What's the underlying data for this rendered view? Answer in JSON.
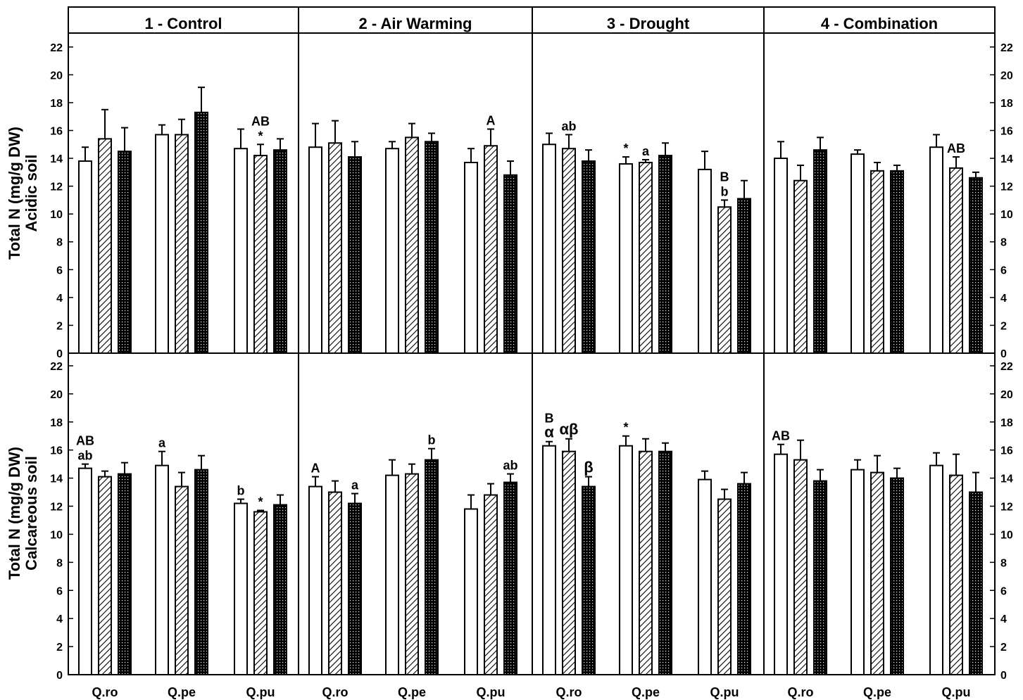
{
  "chart_data": {
    "type": "bar",
    "panels": [
      "1 - Control",
      "2 - Air Warming",
      "3 - Drought",
      "4 - Combination"
    ],
    "rows": [
      {
        "ylabel": [
          "Total N (mg/g DW)",
          "Acidic soil"
        ]
      },
      {
        "ylabel": [
          "Total N (mg/g DW)",
          "Calcareous soil"
        ]
      }
    ],
    "categories": [
      "Q.ro",
      "Q.pe",
      "Q.pu"
    ],
    "series_patterns": [
      "open",
      "hatched",
      "dotted"
    ],
    "ylim": [
      0,
      23
    ],
    "yticks": [
      "0",
      "2",
      "4",
      "6",
      "8",
      "10",
      "12",
      "14",
      "16",
      "18",
      "20",
      "22"
    ],
    "data": [
      [
        [
          {
            "v": 13.8,
            "e": 1.0
          },
          {
            "v": 15.4,
            "e": 2.1
          },
          {
            "v": 14.5,
            "e": 1.7
          },
          {
            "v": 15.7,
            "e": 0.7
          },
          {
            "v": 15.7,
            "e": 1.1
          },
          {
            "v": 17.3,
            "e": 1.8
          },
          {
            "v": 14.7,
            "e": 1.4,
            "lbl": ""
          },
          {
            "v": 14.2,
            "e": 0.8,
            "lbl": "AB\n*"
          },
          {
            "v": 14.6,
            "e": 0.8
          }
        ],
        [
          {
            "v": 14.8,
            "e": 1.7
          },
          {
            "v": 15.1,
            "e": 1.6
          },
          {
            "v": 14.1,
            "e": 1.1
          },
          {
            "v": 14.7,
            "e": 0.5
          },
          {
            "v": 15.5,
            "e": 1.0
          },
          {
            "v": 15.2,
            "e": 0.6
          },
          {
            "v": 13.7,
            "e": 1.0
          },
          {
            "v": 14.9,
            "e": 1.2,
            "lbl": "A"
          },
          {
            "v": 12.8,
            "e": 1.0
          }
        ],
        [
          {
            "v": 15.0,
            "e": 0.8
          },
          {
            "v": 14.7,
            "e": 1.0,
            "lbl": "ab"
          },
          {
            "v": 13.8,
            "e": 0.8
          },
          {
            "v": 13.6,
            "e": 0.5,
            "lbl": "*"
          },
          {
            "v": 13.7,
            "e": 0.2,
            "lbl": "a"
          },
          {
            "v": 14.2,
            "e": 0.9
          },
          {
            "v": 13.2,
            "e": 1.3
          },
          {
            "v": 10.5,
            "e": 0.5,
            "lbl": "B\nb"
          },
          {
            "v": 11.1,
            "e": 1.3
          }
        ],
        [
          {
            "v": 14.0,
            "e": 1.2
          },
          {
            "v": 12.4,
            "e": 1.1
          },
          {
            "v": 14.6,
            "e": 0.9
          },
          {
            "v": 14.3,
            "e": 0.3
          },
          {
            "v": 13.1,
            "e": 0.6
          },
          {
            "v": 13.1,
            "e": 0.4
          },
          {
            "v": 14.8,
            "e": 0.9
          },
          {
            "v": 13.3,
            "e": 0.8,
            "lbl": "AB"
          },
          {
            "v": 12.6,
            "e": 0.4
          }
        ]
      ],
      [
        [
          {
            "v": 14.7,
            "e": 0.3,
            "lbl": "AB\nab"
          },
          {
            "v": 14.1,
            "e": 0.4
          },
          {
            "v": 14.3,
            "e": 0.8
          },
          {
            "v": 14.9,
            "e": 1.0,
            "lbl": "a"
          },
          {
            "v": 13.4,
            "e": 1.0
          },
          {
            "v": 14.6,
            "e": 1.0
          },
          {
            "v": 12.2,
            "e": 0.3,
            "lbl": "b"
          },
          {
            "v": 11.6,
            "e": 0.1,
            "lbl": "*"
          },
          {
            "v": 12.1,
            "e": 0.7
          }
        ],
        [
          {
            "v": 13.4,
            "e": 0.7,
            "lbl": "A"
          },
          {
            "v": 13.0,
            "e": 0.8
          },
          {
            "v": 12.2,
            "e": 0.7,
            "lbl": "a"
          },
          {
            "v": 14.2,
            "e": 1.1
          },
          {
            "v": 14.3,
            "e": 0.7
          },
          {
            "v": 15.3,
            "e": 0.8,
            "lbl": "b"
          },
          {
            "v": 11.8,
            "e": 1.0
          },
          {
            "v": 12.8,
            "e": 0.8
          },
          {
            "v": 13.7,
            "e": 0.6,
            "lbl": "ab"
          }
        ],
        [
          {
            "v": 16.3,
            "e": 0.3,
            "lbl": "B\nα"
          },
          {
            "v": 15.9,
            "e": 0.9,
            "lbl": "αβ"
          },
          {
            "v": 13.4,
            "e": 0.7,
            "lbl": "β"
          },
          {
            "v": 16.3,
            "e": 0.7,
            "lbl": "*"
          },
          {
            "v": 15.9,
            "e": 0.9
          },
          {
            "v": 15.9,
            "e": 0.6
          },
          {
            "v": 13.9,
            "e": 0.6
          },
          {
            "v": 12.5,
            "e": 0.7
          },
          {
            "v": 13.6,
            "e": 0.8
          }
        ],
        [
          {
            "v": 15.7,
            "e": 0.7,
            "lbl": "AB"
          },
          {
            "v": 15.3,
            "e": 1.4
          },
          {
            "v": 13.8,
            "e": 0.8
          },
          {
            "v": 14.6,
            "e": 0.7
          },
          {
            "v": 14.4,
            "e": 1.2
          },
          {
            "v": 14.0,
            "e": 0.7
          },
          {
            "v": 14.9,
            "e": 0.9
          },
          {
            "v": 14.2,
            "e": 1.5
          },
          {
            "v": 13.0,
            "e": 1.4
          }
        ]
      ]
    ]
  }
}
